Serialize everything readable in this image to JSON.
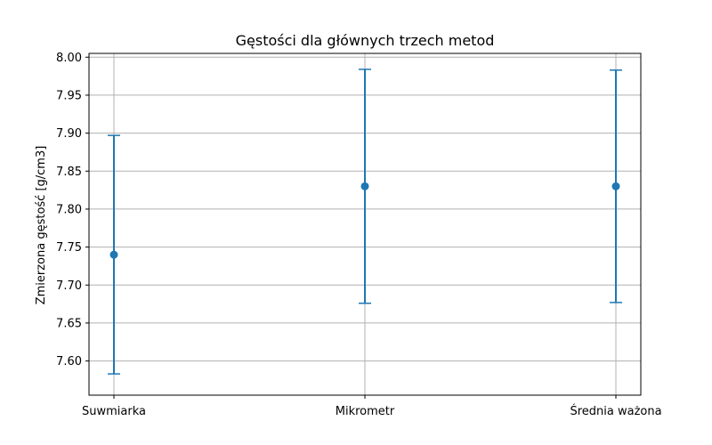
{
  "chart_data": {
    "type": "scatter",
    "title": "Gęstości dla głównych trzech metod",
    "xlabel": "",
    "ylabel": "Zmierzona gęstość [g/cm3]",
    "categories": [
      "Suwmiarka",
      "Mikrometr",
      "Średnia ważona"
    ],
    "values": [
      7.74,
      7.83,
      7.83
    ],
    "error": [
      0.157,
      0.154,
      0.153
    ],
    "ylim": [
      7.555,
      8.005
    ],
    "yticks": [
      "7.60",
      "7.65",
      "7.70",
      "7.75",
      "7.80",
      "7.85",
      "7.90",
      "7.95",
      "8.00"
    ],
    "grid": true,
    "marker": "circle",
    "colors": {
      "series": "#1f77b4",
      "grid": "#b0b0b0",
      "axes": "#000000"
    }
  }
}
